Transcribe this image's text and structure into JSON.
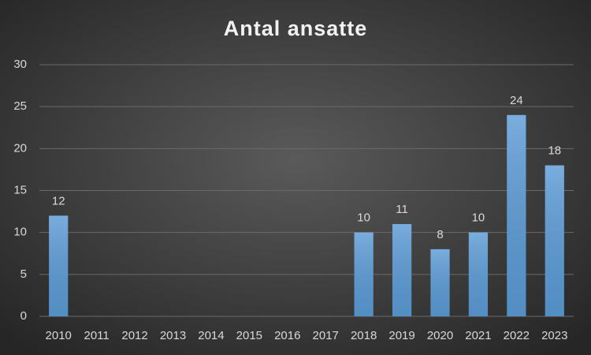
{
  "chart_data": {
    "type": "bar",
    "title": "Antal ansatte",
    "categories": [
      "2010",
      "2011",
      "2012",
      "2013",
      "2014",
      "2015",
      "2016",
      "2017",
      "2018",
      "2019",
      "2020",
      "2021",
      "2022",
      "2023"
    ],
    "values": [
      12,
      null,
      null,
      null,
      null,
      null,
      null,
      null,
      10,
      11,
      8,
      10,
      24,
      18
    ],
    "color": "#5b9bd5",
    "ylim": [
      0,
      30
    ],
    "yticks": [
      0,
      5,
      10,
      15,
      20,
      25,
      30
    ],
    "grid": true
  }
}
